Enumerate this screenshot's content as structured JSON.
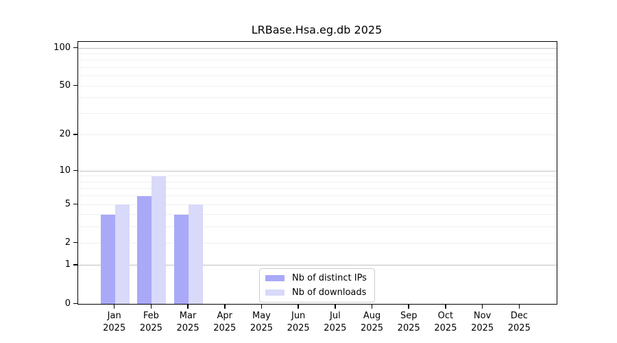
{
  "chart_data": {
    "type": "bar",
    "title": "LRBase.Hsa.eg.db 2025",
    "categories": [
      "Jan",
      "Feb",
      "Mar",
      "Apr",
      "May",
      "Jun",
      "Jul",
      "Aug",
      "Sep",
      "Oct",
      "Nov",
      "Dec"
    ],
    "year": "2025",
    "series": [
      {
        "name": "Nb of distinct IPs",
        "color": "#a9a9f8",
        "values": [
          4,
          6,
          4,
          0,
          0,
          0,
          0,
          0,
          0,
          0,
          0,
          0
        ]
      },
      {
        "name": "Nb of downloads",
        "color": "#d9d9f9",
        "values": [
          5,
          9,
          5,
          0,
          0,
          0,
          0,
          0,
          0,
          0,
          0,
          0
        ]
      }
    ],
    "y_scale": "log1p",
    "y_max": 112,
    "y_ticks": [
      0,
      1,
      2,
      5,
      10,
      20,
      50,
      100
    ],
    "gridlines_decade": [
      1,
      10,
      100
    ],
    "gridlines_other": [
      2,
      3,
      4,
      5,
      6,
      7,
      8,
      9,
      20,
      30,
      40,
      50,
      60,
      70,
      80,
      90
    ],
    "grid": true,
    "legend_position": "lower-center",
    "xlabel": "",
    "ylabel": ""
  },
  "colors": {
    "spine": "#000000",
    "grid_major": "#c2c2c2",
    "grid_minor": "#efefef",
    "background": "#ffffff"
  }
}
